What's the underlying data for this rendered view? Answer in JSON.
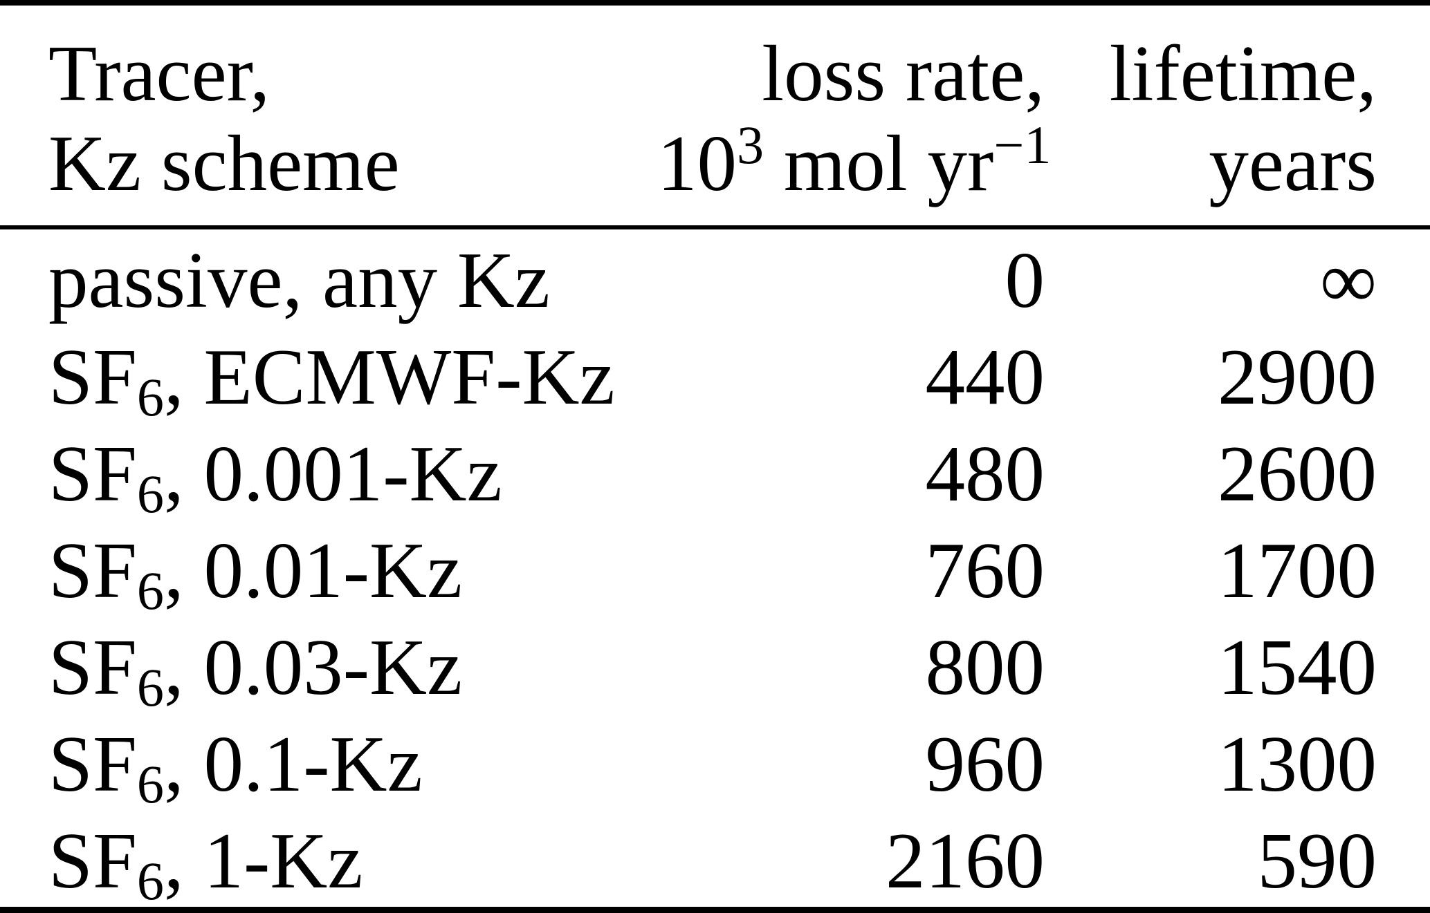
{
  "colors": {
    "background": "#ffffff",
    "text": "#000000",
    "rule": "#000000"
  },
  "table": {
    "header": {
      "tracer": {
        "line1": "Tracer,",
        "line2": "Kz scheme"
      },
      "loss_rate": {
        "line1": "loss rate,",
        "line2_parts": [
          {
            "t": "10"
          },
          {
            "sup": "3"
          },
          {
            "t": " mol yr"
          },
          {
            "sup": "−1"
          }
        ]
      },
      "lifetime": {
        "line1": "lifetime,",
        "line2": "years"
      }
    },
    "rows": [
      {
        "tracer_parts": [
          {
            "t": "passive, any Kz"
          }
        ],
        "loss_rate": "0",
        "lifetime": "∞"
      },
      {
        "tracer_parts": [
          {
            "t": "SF"
          },
          {
            "sub": "6"
          },
          {
            "t": ", ECMWF-Kz"
          }
        ],
        "loss_rate": "440",
        "lifetime": "2900"
      },
      {
        "tracer_parts": [
          {
            "t": "SF"
          },
          {
            "sub": "6"
          },
          {
            "t": ", 0.001-Kz"
          }
        ],
        "loss_rate": "480",
        "lifetime": "2600"
      },
      {
        "tracer_parts": [
          {
            "t": "SF"
          },
          {
            "sub": "6"
          },
          {
            "t": ", 0.01-Kz"
          }
        ],
        "loss_rate": "760",
        "lifetime": "1700"
      },
      {
        "tracer_parts": [
          {
            "t": "SF"
          },
          {
            "sub": "6"
          },
          {
            "t": ", 0.03-Kz"
          }
        ],
        "loss_rate": "800",
        "lifetime": "1540"
      },
      {
        "tracer_parts": [
          {
            "t": "SF"
          },
          {
            "sub": "6"
          },
          {
            "t": ", 0.1-Kz"
          }
        ],
        "loss_rate": "960",
        "lifetime": "1300"
      },
      {
        "tracer_parts": [
          {
            "t": "SF"
          },
          {
            "sub": "6"
          },
          {
            "t": ", 1-Kz"
          }
        ],
        "loss_rate": "2160",
        "lifetime": "590"
      }
    ]
  }
}
